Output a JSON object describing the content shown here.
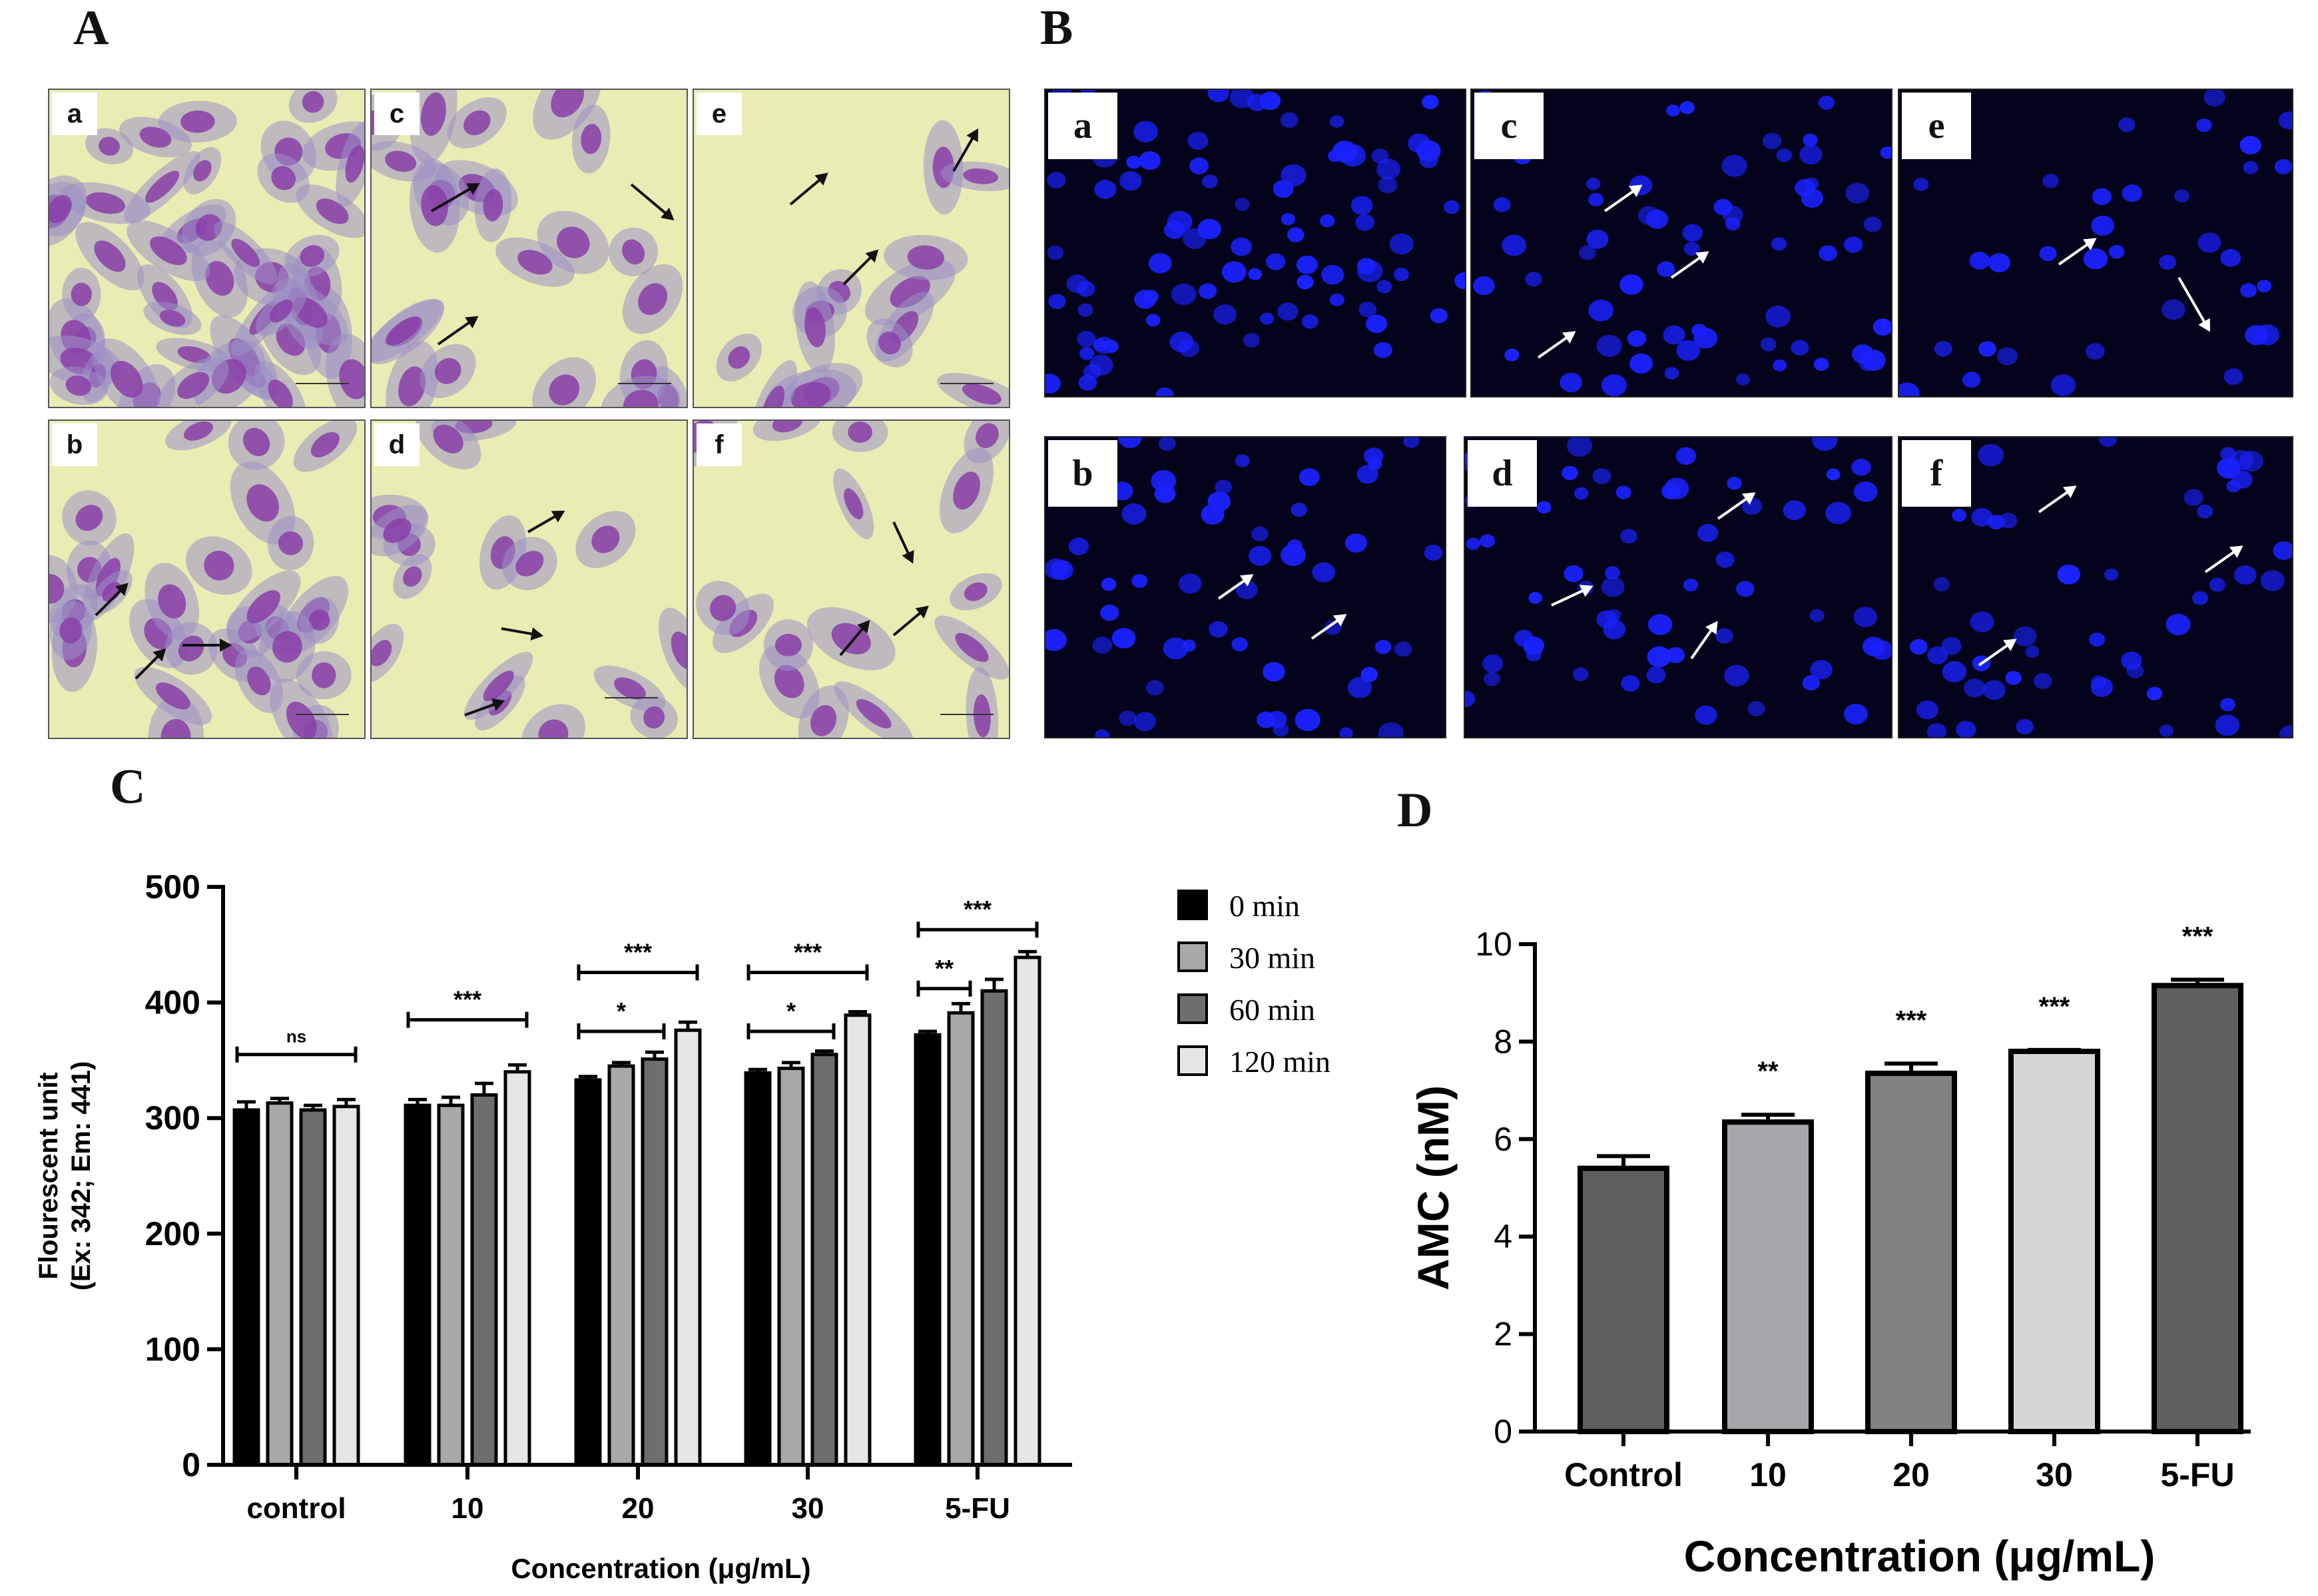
{
  "panels": {
    "A": "A",
    "B": "B",
    "C": "C",
    "D": "D"
  },
  "micrographs_A": [
    {
      "label": "a"
    },
    {
      "label": "c"
    },
    {
      "label": "e"
    },
    {
      "label": "b"
    },
    {
      "label": "d"
    },
    {
      "label": "f"
    }
  ],
  "micrographs_B": [
    {
      "label": "a"
    },
    {
      "label": "c"
    },
    {
      "label": "e"
    },
    {
      "label": "b"
    },
    {
      "label": "d"
    },
    {
      "label": "f"
    }
  ],
  "colors": {
    "stain_background": "#e9edb4",
    "cell_cytoplasm": "#9a8fc4",
    "cell_nucleus": "#8a3ea8",
    "nucleus_blue": "#1a22ff",
    "fluor_background": "#03031c"
  },
  "chart_data": [
    {
      "type": "bar",
      "panel": "C",
      "ylabel": "Flourescent unit",
      "ylabel_sub": "(Ex: 342; Em: 441)",
      "xlabel": "Concentration (μg/mL)",
      "ylim": [
        0,
        500
      ],
      "yticks": [
        0,
        100,
        200,
        300,
        400,
        500
      ],
      "categories": [
        "control",
        "10",
        "20",
        "30",
        "5-FU"
      ],
      "series": [
        {
          "name": "0 min",
          "color": "#000000",
          "values": [
            307,
            311,
            333,
            339,
            372
          ],
          "errors": [
            7,
            5,
            3,
            3,
            3
          ]
        },
        {
          "name": "30 min",
          "color": "#a8a8a8",
          "values": [
            313,
            311,
            345,
            343,
            391
          ],
          "errors": [
            4,
            7,
            3,
            5,
            8
          ]
        },
        {
          "name": "60 min",
          "color": "#6e6e6e",
          "values": [
            307,
            320,
            351,
            355,
            410
          ],
          "errors": [
            4,
            10,
            6,
            3,
            10
          ]
        },
        {
          "name": "120 min",
          "color": "#e6e6e6",
          "values": [
            310,
            340,
            376,
            389,
            439
          ],
          "errors": [
            6,
            6,
            7,
            3,
            5
          ]
        }
      ],
      "annotations": [
        {
          "category": 0,
          "from": 0,
          "to": 3,
          "level": 355,
          "text": "ns"
        },
        {
          "category": 1,
          "from": 0,
          "to": 3,
          "level": 385,
          "text": "***"
        },
        {
          "category": 2,
          "from": 0,
          "to": 3,
          "level": 426,
          "text": "***"
        },
        {
          "category": 2,
          "from": 0,
          "to": 2,
          "level": 375,
          "text": "*"
        },
        {
          "category": 3,
          "from": 0,
          "to": 3,
          "level": 426,
          "text": "***"
        },
        {
          "category": 3,
          "from": 0,
          "to": 2,
          "level": 375,
          "text": "*"
        },
        {
          "category": 4,
          "from": 0,
          "to": 3,
          "level": 463,
          "text": "***"
        },
        {
          "category": 4,
          "from": 0,
          "to": 1,
          "level": 412,
          "text": "**"
        }
      ]
    },
    {
      "type": "bar",
      "panel": "D",
      "ylabel": "AMC (nM)",
      "xlabel": "Concentration (μg/mL)",
      "ylim": [
        0,
        10
      ],
      "yticks": [
        0,
        2,
        4,
        6,
        8,
        10
      ],
      "categories": [
        "Control",
        "10",
        "20",
        "30",
        "5-FU"
      ],
      "values": [
        5.4,
        6.35,
        7.35,
        7.8,
        9.15
      ],
      "errors": [
        0.25,
        0.15,
        0.2,
        0.03,
        0.12
      ],
      "colors": [
        "#5f5f5f",
        "#a7a7ab",
        "#828282",
        "#d6d6d6",
        "#5f5f5f"
      ],
      "significance": [
        "",
        "**",
        "***",
        "***",
        "***"
      ]
    }
  ]
}
